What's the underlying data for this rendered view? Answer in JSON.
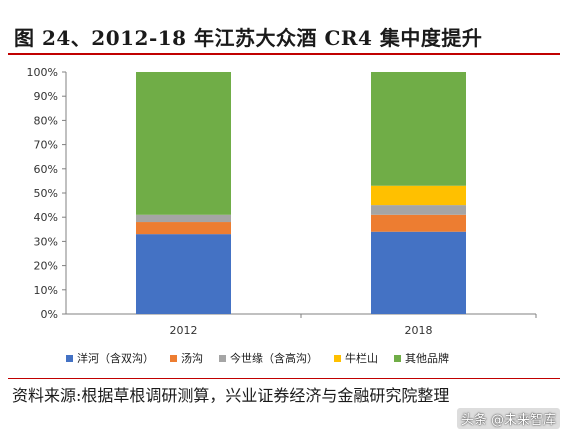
{
  "figure": {
    "title": "图 24、2012-18 年江苏大众酒 CR4 集中度提升",
    "source": "资料来源:根据草根调研测算，兴业证券经济与金融研究院整理",
    "watermark": "头条 @未来智库"
  },
  "chart_data": {
    "type": "bar",
    "stacked": true,
    "categories": [
      "2012",
      "2018"
    ],
    "series": [
      {
        "name": "洋河（含双沟）",
        "color": "#4472c4",
        "values": [
          33,
          34
        ]
      },
      {
        "name": "汤沟",
        "color": "#ed7d31",
        "values": [
          5,
          7
        ]
      },
      {
        "name": "今世缘（含高沟）",
        "color": "#a5a5a5",
        "values": [
          3,
          4
        ]
      },
      {
        "name": "牛栏山",
        "color": "#ffc000",
        "values": [
          0,
          8
        ]
      },
      {
        "name": "其他品牌",
        "color": "#70ad47",
        "values": [
          59,
          47
        ]
      }
    ],
    "ylim": [
      0,
      100
    ],
    "yticks": [
      "0%",
      "10%",
      "20%",
      "30%",
      "40%",
      "50%",
      "60%",
      "70%",
      "80%",
      "90%",
      "100%"
    ],
    "grid": false,
    "legend_position": "bottom"
  }
}
